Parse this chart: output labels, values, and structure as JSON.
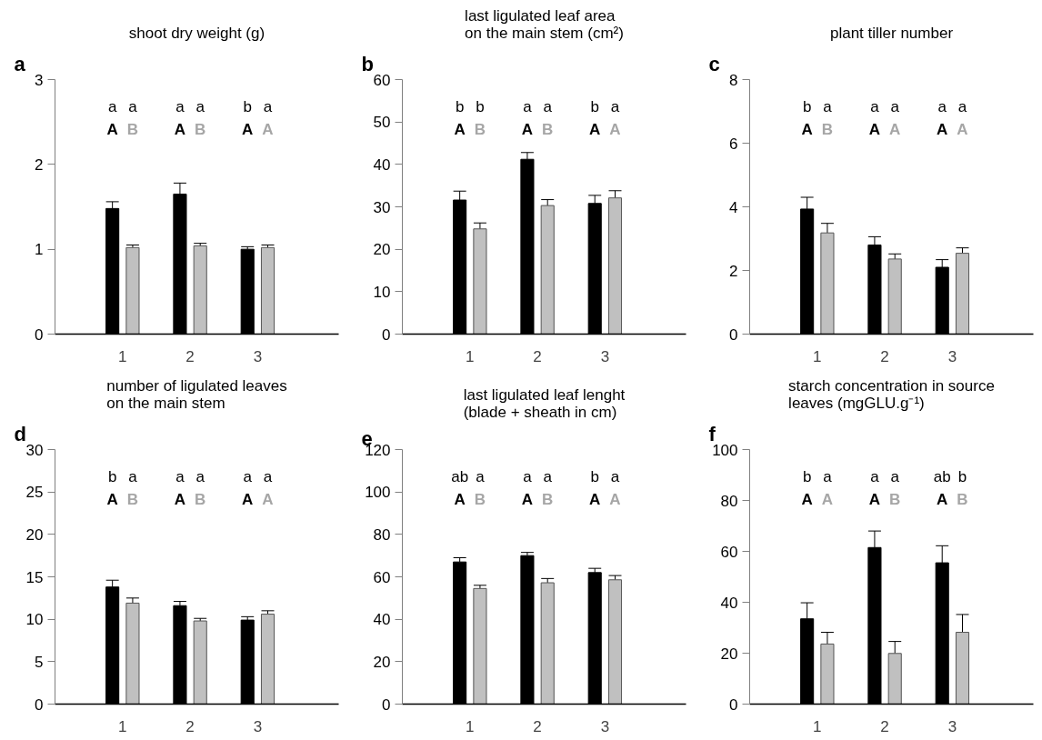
{
  "chart_data": [
    {
      "type": "bar",
      "title": "shoot dry weight (g)",
      "categories": [
        "1",
        "2",
        "3"
      ],
      "series": [
        {
          "color": "#000000",
          "values": [
            1.48,
            1.65,
            1.0
          ],
          "errors": [
            [
              1.48,
              1.56
            ],
            [
              1.65,
              1.78
            ],
            [
              1.0,
              1.03
            ]
          ]
        },
        {
          "color": "#c0c0c0",
          "values": [
            1.02,
            1.04,
            1.02
          ],
          "errors": [
            [
              1.02,
              1.05
            ],
            [
              1.04,
              1.07
            ],
            [
              1.02,
              1.05
            ]
          ]
        }
      ],
      "ylim": [
        0,
        3
      ],
      "yticks": [
        0,
        1,
        2,
        3
      ],
      "annotations": [
        "a",
        "a",
        "A",
        "a",
        "B",
        "a",
        "A",
        "a",
        "B",
        "b",
        "A",
        "a",
        "A"
      ]
    },
    {
      "type": "bar",
      "title": "last ligulated leaf area\non the main stem (cm²)",
      "categories": [
        "1",
        "2",
        "3"
      ],
      "series": [
        {
          "color": "#000000",
          "values": [
            31.6,
            41.2,
            30.8
          ],
          "errors": [
            [
              31.6,
              33.7
            ],
            [
              41.2,
              42.8
            ],
            [
              30.8,
              32.7
            ]
          ]
        },
        {
          "color": "#c0c0c0",
          "values": [
            24.8,
            30.3,
            32.1
          ],
          "errors": [
            [
              24.8,
              26.2
            ],
            [
              30.3,
              31.7
            ],
            [
              32.1,
              33.8
            ]
          ]
        }
      ],
      "ylim": [
        0,
        60
      ],
      "yticks": [
        0,
        10,
        20,
        30,
        40,
        50,
        60
      ],
      "annotations": [
        "b",
        "b",
        "A",
        "b",
        "B",
        "a",
        "A",
        "a",
        "B",
        "b",
        "A",
        "a",
        "A"
      ]
    },
    {
      "type": "bar",
      "title": "plant tiller number",
      "categories": [
        "1",
        "2",
        "3"
      ],
      "series": [
        {
          "color": "#000000",
          "values": [
            3.93,
            2.8,
            2.1
          ],
          "errors": [
            [
              3.93,
              4.3
            ],
            [
              2.8,
              3.06
            ],
            [
              2.1,
              2.34
            ]
          ]
        },
        {
          "color": "#c0c0c0",
          "values": [
            3.18,
            2.36,
            2.54
          ],
          "errors": [
            [
              3.18,
              3.48
            ],
            [
              2.36,
              2.52
            ],
            [
              2.54,
              2.71
            ]
          ]
        }
      ],
      "ylim": [
        0,
        8
      ],
      "yticks": [
        0,
        2,
        4,
        6,
        8
      ],
      "annotations": [
        "c",
        "b",
        "A",
        "a",
        "B",
        "a",
        "A",
        "a",
        "A",
        "a",
        "A",
        "a",
        "A"
      ]
    },
    {
      "type": "bar",
      "title": "number of ligulated leaves\non the main stem",
      "categories": [
        "1",
        "2",
        "3"
      ],
      "series": [
        {
          "color": "#000000",
          "values": [
            13.8,
            11.6,
            9.9
          ],
          "errors": [
            [
              13.8,
              14.6
            ],
            [
              11.6,
              12.1
            ],
            [
              9.9,
              10.3
            ]
          ]
        },
        {
          "color": "#c0c0c0",
          "values": [
            11.9,
            9.8,
            10.6
          ],
          "errors": [
            [
              11.9,
              12.5
            ],
            [
              9.8,
              10.1
            ],
            [
              10.6,
              11.0
            ]
          ]
        }
      ],
      "ylim": [
        0,
        30
      ],
      "yticks": [
        0,
        5,
        10,
        15,
        20,
        25,
        30
      ],
      "annotations": [
        "d",
        "b",
        "A",
        "a",
        "B",
        "a",
        "A",
        "a",
        "B",
        "a",
        "A",
        "a",
        "A"
      ]
    },
    {
      "type": "bar",
      "title": "last ligulated leaf lenght\n(blade + sheath in cm)",
      "categories": [
        "1",
        "2",
        "3"
      ],
      "series": [
        {
          "color": "#000000",
          "values": [
            67,
            70,
            62
          ],
          "errors": [
            [
              67,
              69
            ],
            [
              70,
              71.5
            ],
            [
              62,
              64
            ]
          ]
        },
        {
          "color": "#c0c0c0",
          "values": [
            54.5,
            57.2,
            58.6
          ],
          "errors": [
            [
              54.5,
              56
            ],
            [
              57.2,
              59.2
            ],
            [
              58.6,
              60.6
            ]
          ]
        }
      ],
      "ylim": [
        0,
        120
      ],
      "yticks": [
        0,
        20,
        40,
        60,
        80,
        100,
        120
      ],
      "annotations": [
        "e",
        "ab",
        "A",
        "a",
        "B",
        "a",
        "A",
        "a",
        "B",
        "b",
        "A",
        "a",
        "A"
      ]
    },
    {
      "type": "bar",
      "title": "starch concentration in source\nleaves (mgGLU.g⁻¹)",
      "categories": [
        "1",
        "2",
        "3"
      ],
      "series": [
        {
          "color": "#000000",
          "values": [
            33.5,
            61.5,
            55.5
          ],
          "errors": [
            [
              33.5,
              39.8
            ],
            [
              61.5,
              68
            ],
            [
              55.5,
              62.2
            ]
          ]
        },
        {
          "color": "#c0c0c0",
          "values": [
            23.6,
            19.9,
            28.2
          ],
          "errors": [
            [
              23.6,
              28.2
            ],
            [
              19.9,
              24.6
            ],
            [
              28.2,
              35.2
            ]
          ]
        }
      ],
      "ylim": [
        0,
        100
      ],
      "yticks": [
        0,
        20,
        40,
        60,
        80,
        100
      ],
      "annotations": [
        "f",
        "b",
        "A",
        "a",
        "A",
        "a",
        "A",
        "a",
        "B",
        "ab",
        "A",
        "b",
        "B"
      ]
    }
  ]
}
